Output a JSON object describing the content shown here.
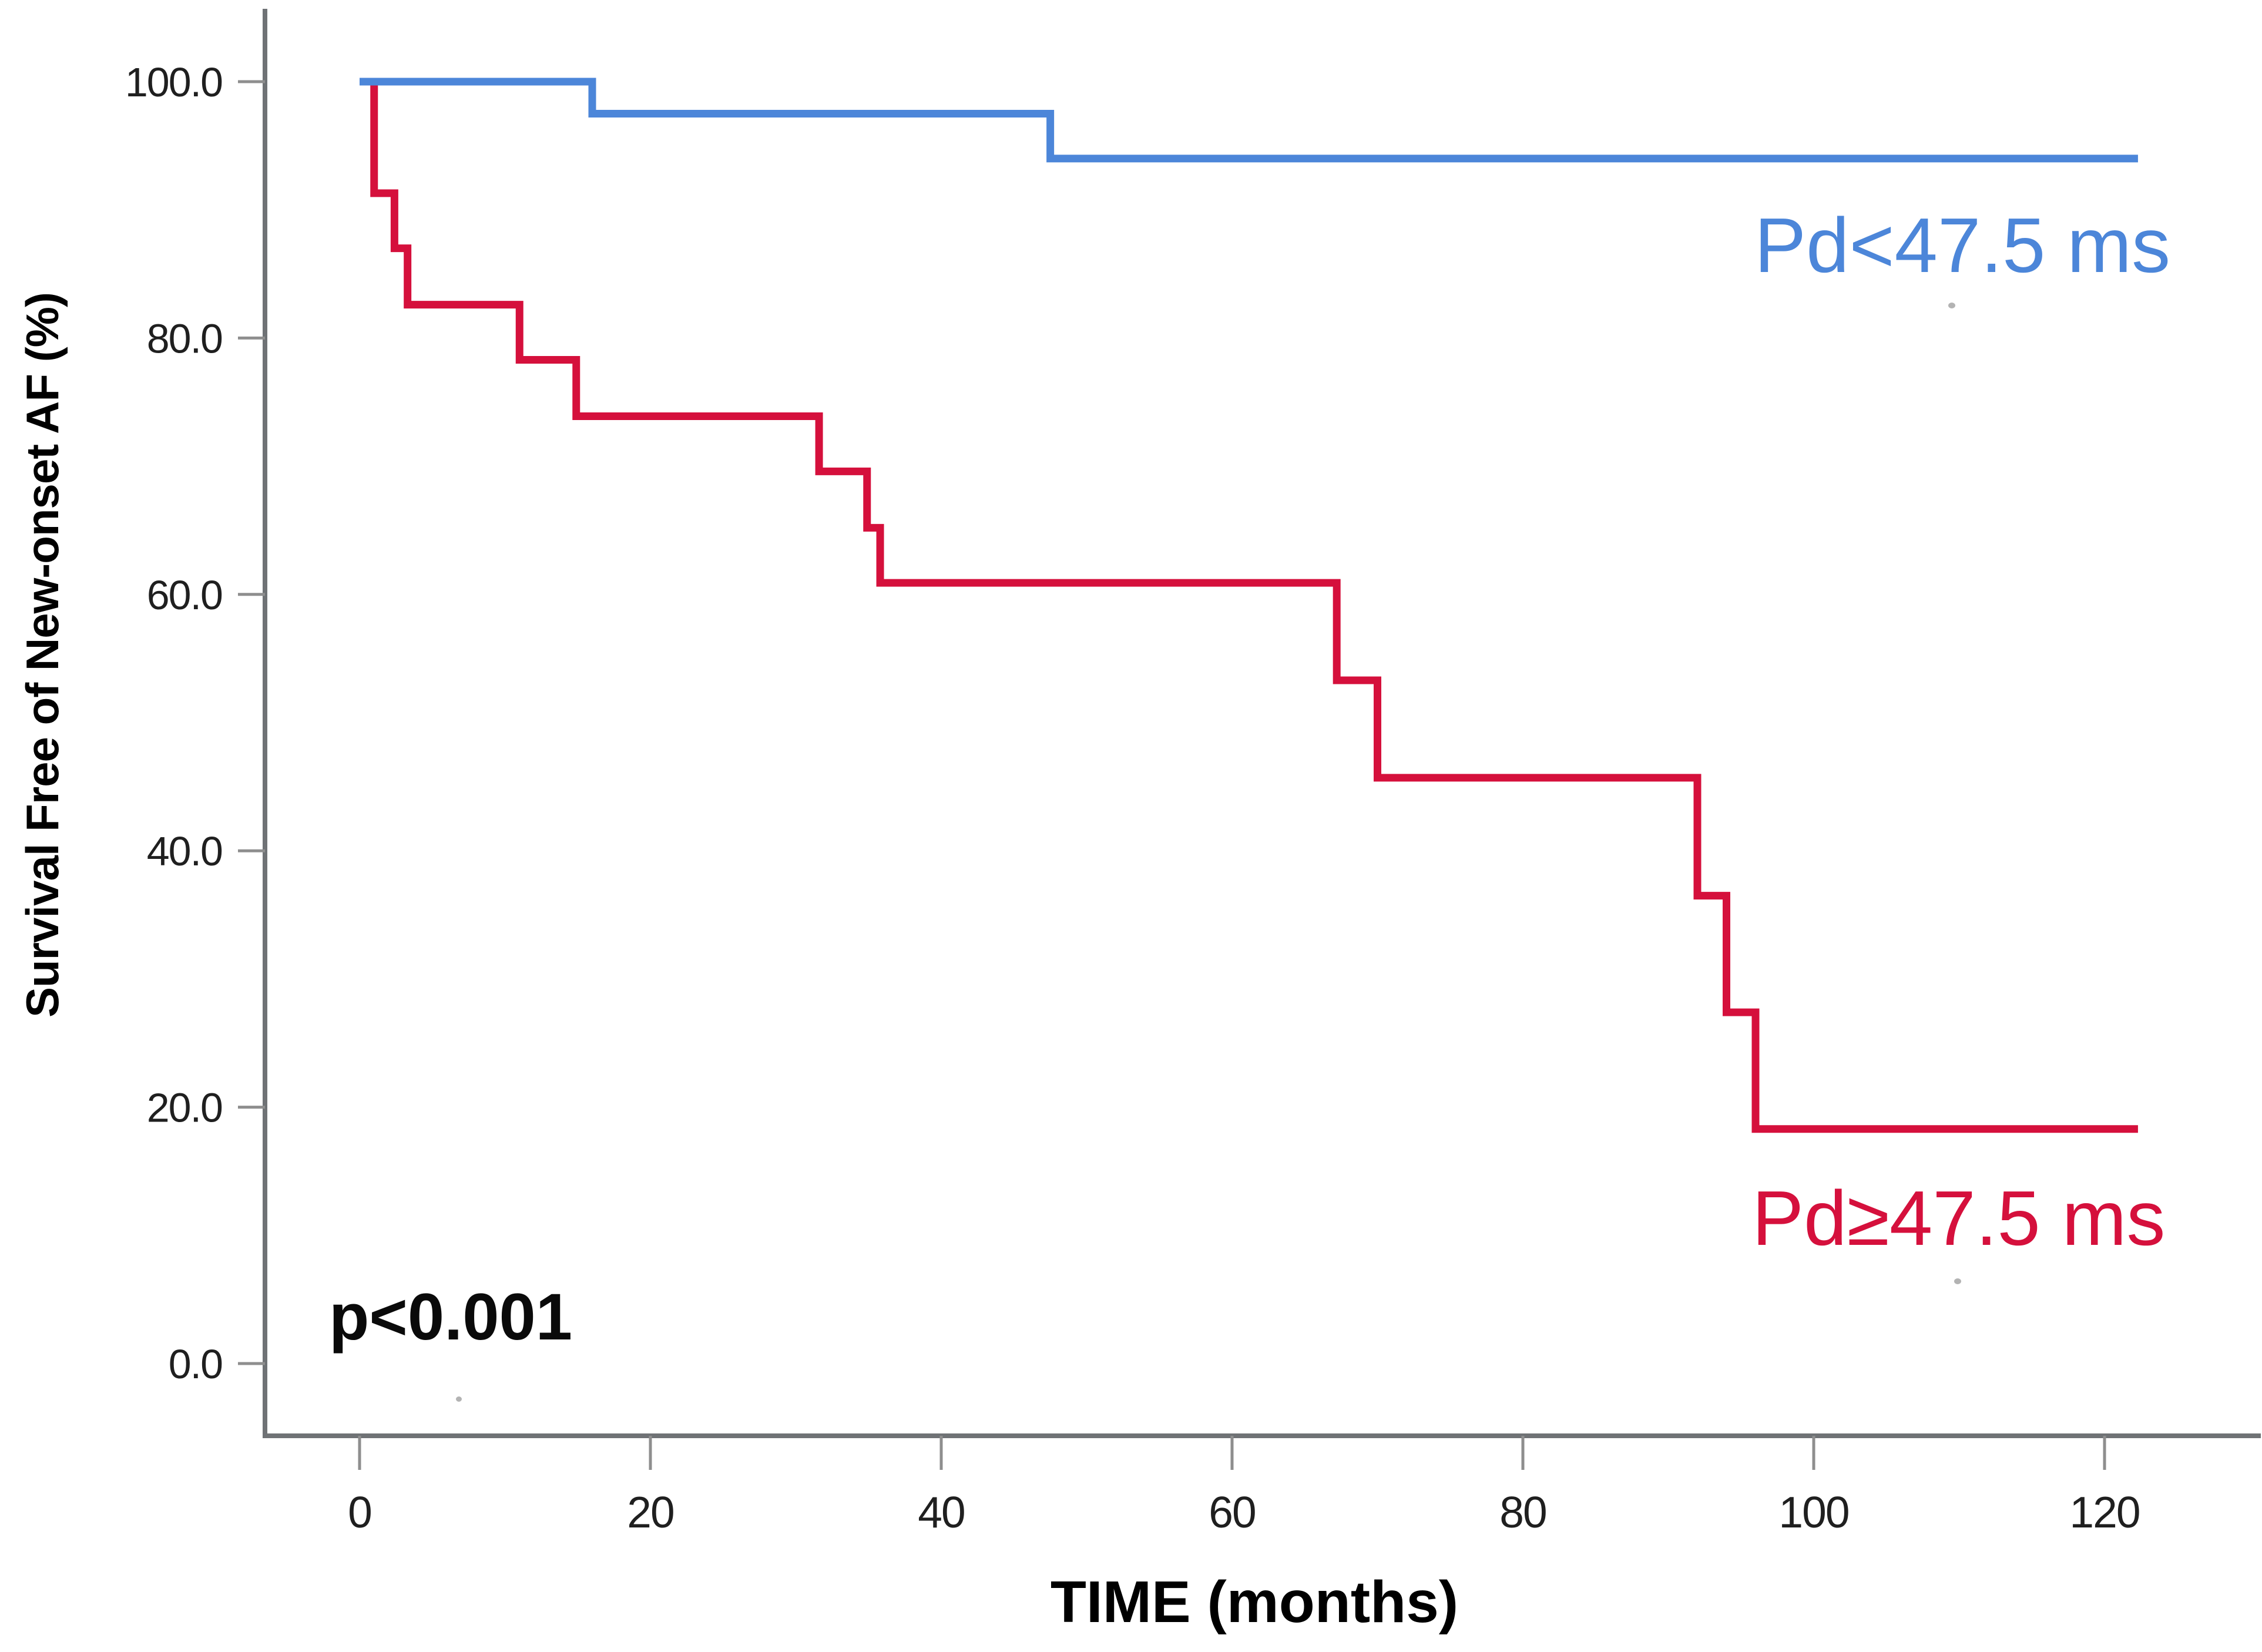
{
  "chart_data": {
    "type": "line",
    "variant": "kaplan_meier_step",
    "title": "",
    "xlabel": "TIME (months)",
    "ylabel": "Survival Free of New-onset AF (%)",
    "p_value_annotation": "p<0.001",
    "grid": false,
    "legend_position": "inline-curve-labels",
    "x_axis": {
      "min": 0,
      "max": 124,
      "ticks": [
        {
          "value": 0,
          "label": "0"
        },
        {
          "value": 20,
          "label": "20"
        },
        {
          "value": 40,
          "label": "40"
        },
        {
          "value": 60,
          "label": "60"
        },
        {
          "value": 80,
          "label": "80"
        },
        {
          "value": 100,
          "label": "100"
        },
        {
          "value": 120,
          "label": "120"
        }
      ]
    },
    "y_axis": {
      "min": 0,
      "max": 100,
      "ticks": [
        {
          "value": 0,
          "label": "0.0"
        },
        {
          "value": 20,
          "label": "20.0"
        },
        {
          "value": 40,
          "label": "40.0"
        },
        {
          "value": 60,
          "label": "60.0"
        },
        {
          "value": 80,
          "label": "80.0"
        },
        {
          "value": 100,
          "label": "100.0"
        }
      ]
    },
    "series": [
      {
        "name": "Pd≥47.5 ms",
        "color": "#D5103C",
        "points": [
          {
            "t": 0,
            "s": 100
          },
          {
            "t": 1,
            "s": 91.3
          },
          {
            "t": 2.4,
            "s": 87.0
          },
          {
            "t": 3.3,
            "s": 82.6
          },
          {
            "t": 11,
            "s": 78.3
          },
          {
            "t": 14.9,
            "s": 73.9
          },
          {
            "t": 31.6,
            "s": 69.6
          },
          {
            "t": 34.9,
            "s": 65.2
          },
          {
            "t": 35.8,
            "s": 60.9
          },
          {
            "t": 67.2,
            "s": 53.3
          },
          {
            "t": 70,
            "s": 45.7
          },
          {
            "t": 92,
            "s": 36.5
          },
          {
            "t": 94,
            "s": 27.4
          },
          {
            "t": 96,
            "s": 18.3
          }
        ],
        "end_t": 122.3
      },
      {
        "name": "Pd<47.5 ms",
        "color": "#4C86D9",
        "points": [
          {
            "t": 0,
            "s": 100
          },
          {
            "t": 16,
            "s": 97.5
          },
          {
            "t": 47.5,
            "s": 94.0
          }
        ],
        "end_t": 122.3
      }
    ],
    "colors": {
      "axis": "#6F7275",
      "tick": "#8E8E8E",
      "tick_label": "#1F1F1F",
      "text": "#000000",
      "background": "#FFFFFF",
      "blue_series": "#4C86D9",
      "red_series": "#D5103C"
    }
  }
}
